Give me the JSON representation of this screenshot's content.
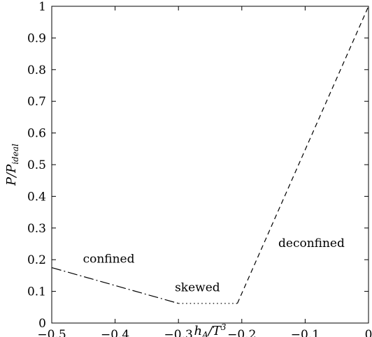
{
  "chart_data": {
    "type": "line",
    "xlabel": "h_A/T^3",
    "ylabel": "P/P_ideal",
    "xlim": [
      -0.5,
      0
    ],
    "ylim": [
      0,
      1
    ],
    "xticks": [
      -0.5,
      -0.4,
      -0.3,
      -0.2,
      -0.1,
      0
    ],
    "xtick_labels": [
      "−0.5",
      "−0.4",
      "−0.3",
      "−0.2",
      "−0.1",
      "0"
    ],
    "yticks": [
      0,
      0.1,
      0.2,
      0.3,
      0.4,
      0.5,
      0.6,
      0.7,
      0.8,
      0.9,
      1
    ],
    "ytick_labels": [
      "0",
      "0.1",
      "0.2",
      "0.3",
      "0.4",
      "0.5",
      "0.6",
      "0.7",
      "0.8",
      "0.9",
      "1"
    ],
    "grid": false,
    "series": [
      {
        "style": "dash-dot",
        "x": [
          -0.5,
          -0.3
        ],
        "y": [
          0.175,
          0.062
        ]
      },
      {
        "style": "dotted",
        "x": [
          -0.3,
          -0.207
        ],
        "y": [
          0.062,
          0.062
        ]
      },
      {
        "style": "dashed",
        "x": [
          -0.207,
          0
        ],
        "y": [
          0.062,
          1.0
        ]
      }
    ],
    "annotations": [
      {
        "text": "confined",
        "x": -0.41,
        "y": 0.19
      },
      {
        "text": "skewed",
        "x": -0.27,
        "y": 0.1
      },
      {
        "text": "deconfined",
        "x": -0.09,
        "y": 0.24
      }
    ]
  }
}
